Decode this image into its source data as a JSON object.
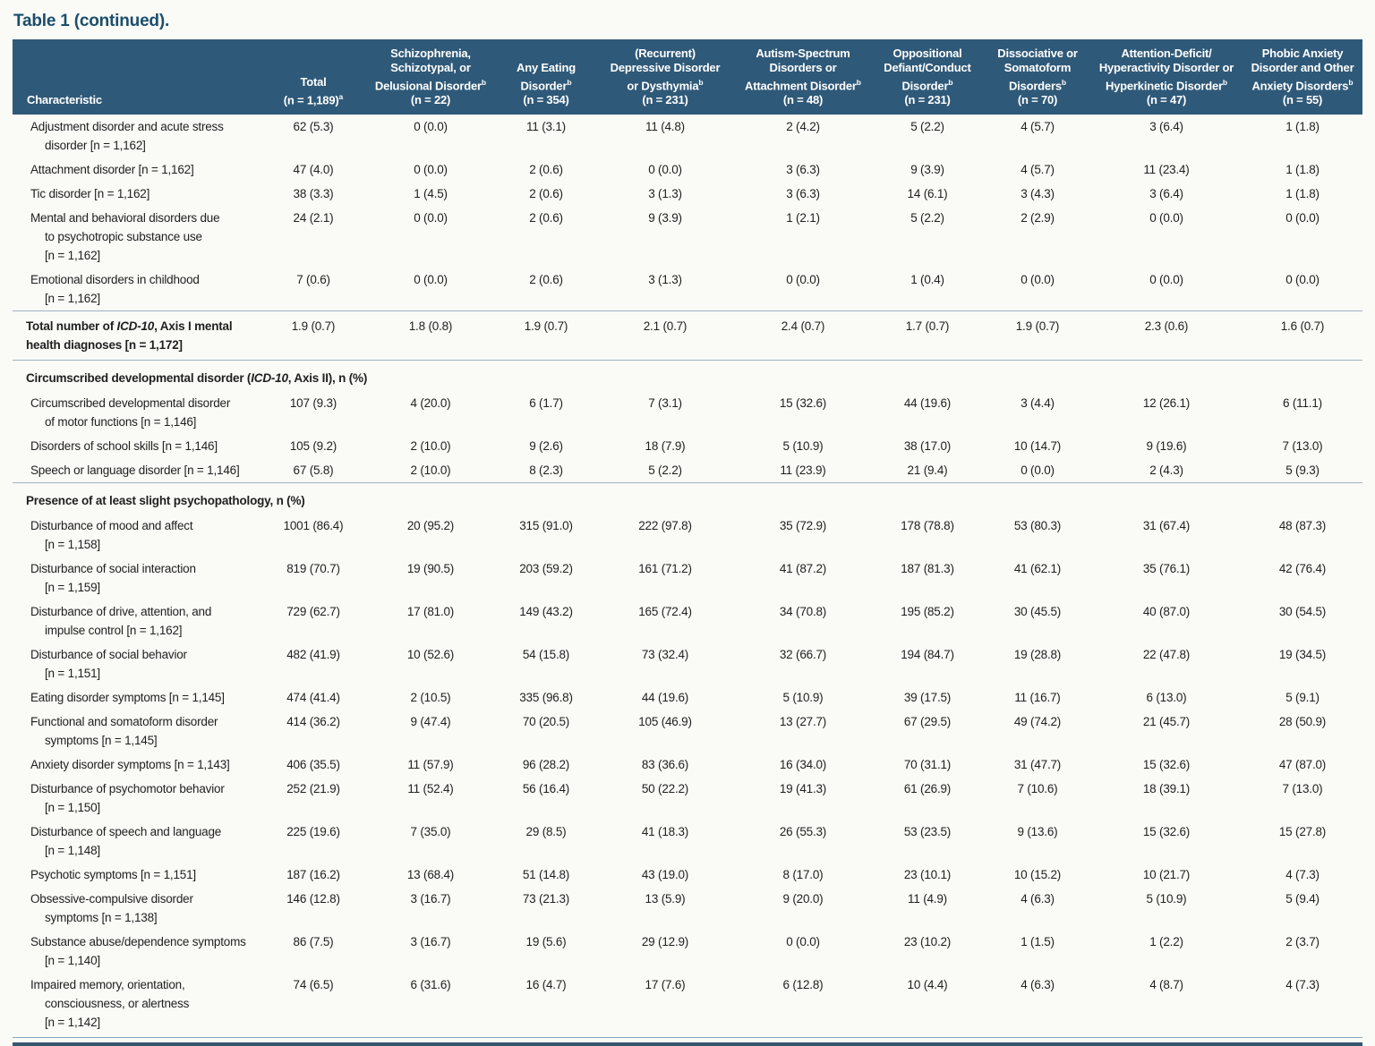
{
  "title": "Table 1 (continued).",
  "colors": {
    "header_bg": "#2f5978",
    "header_text": "#ffffff",
    "title_text": "#1b4e6b",
    "rule": "#9db3c4",
    "bottom_rule": "#35566f"
  },
  "table": {
    "columns": [
      {
        "label_html": "Characteristic"
      },
      {
        "label_html": "Total<br>(n = 1,189)<sup>a</sup>"
      },
      {
        "label_html": "Schizophrenia,<br>Schizotypal, or<br>Delusional Disorder<sup>b</sup><br>(n = 22)"
      },
      {
        "label_html": "Any Eating<br>Disorder<sup>b</sup><br>(n = 354)"
      },
      {
        "label_html": "(Recurrent)<br>Depressive Disorder<br>or Dysthymia<sup>b</sup><br>(n = 231)"
      },
      {
        "label_html": "Autism-Spectrum<br>Disorders or<br>Attachment Disorder<sup>b</sup><br>(n = 48)"
      },
      {
        "label_html": "Oppositional<br>Defiant/Conduct<br>Disorder<sup>b</sup><br>(n = 231)"
      },
      {
        "label_html": "Dissociative or<br>Somatoform<br>Disorders<sup>b</sup><br>(n = 70)"
      },
      {
        "label_html": "Attention-Deficit/<br>Hyperactivity Disorder or<br>Hyperkinetic Disorder<sup>b</sup><br>(n = 47)"
      },
      {
        "label_html": "Phobic Anxiety<br>Disorder and Other<br>Anxiety Disorders<sup>b</sup><br>(n = 55)"
      }
    ],
    "rows": [
      {
        "type": "item",
        "label_html": "Adjustment disorder and acute stress<br>disorder [n = 1,162]",
        "values": [
          "62 (5.3)",
          "0 (0.0)",
          "11 (3.1)",
          "11 (4.8)",
          "2 (4.2)",
          "5 (2.2)",
          "4 (5.7)",
          "3 (6.4)",
          "1 (1.8)"
        ]
      },
      {
        "type": "item",
        "label_html": "Attachment disorder [n = 1,162]",
        "values": [
          "47 (4.0)",
          "0 (0.0)",
          "2 (0.6)",
          "0 (0.0)",
          "3 (6.3)",
          "9 (3.9)",
          "4 (5.7)",
          "11 (23.4)",
          "1 (1.8)"
        ]
      },
      {
        "type": "item",
        "label_html": "Tic disorder [n = 1,162]",
        "values": [
          "38 (3.3)",
          "1 (4.5)",
          "2 (0.6)",
          "3 (1.3)",
          "3 (6.3)",
          "14 (6.1)",
          "3 (4.3)",
          "3 (6.4)",
          "1 (1.8)"
        ]
      },
      {
        "type": "item",
        "label_html": "Mental and behavioral disorders due<br>to psychotropic substance use<br>[n = 1,162]",
        "values": [
          "24 (2.1)",
          "0 (0.0)",
          "2 (0.6)",
          "9 (3.9)",
          "1 (2.1)",
          "5 (2.2)",
          "2 (2.9)",
          "0 (0.0)",
          "0 (0.0)"
        ]
      },
      {
        "type": "item",
        "label_html": "Emotional disorders in childhood<br>[n = 1,162]",
        "values": [
          "7 (0.6)",
          "0 (0.0)",
          "2 (0.6)",
          "3 (1.3)",
          "0 (0.0)",
          "1 (0.4)",
          "0 (0.0)",
          "0 (0.0)",
          "0 (0.0)"
        ]
      },
      {
        "type": "total",
        "label_html": "Total number of <i>ICD-10</i>, Axis I mental<br>health diagnoses [n = 1,172]",
        "values": [
          "1.9 (0.7)",
          "1.8 (0.8)",
          "1.9 (0.7)",
          "2.1 (0.7)",
          "2.4 (0.7)",
          "1.7 (0.7)",
          "1.9 (0.7)",
          "2.3 (0.6)",
          "1.6 (0.7)"
        ]
      },
      {
        "type": "section",
        "label_html": "Circumscribed developmental disorder (<i>ICD-10</i>, Axis II), n (%)"
      },
      {
        "type": "item",
        "label_html": "Circumscribed developmental disorder<br>of motor functions [n = 1,146]",
        "values": [
          "107 (9.3)",
          "4 (20.0)",
          "6 (1.7)",
          "7 (3.1)",
          "15 (32.6)",
          "44 (19.6)",
          "3 (4.4)",
          "12 (26.1)",
          "6 (11.1)"
        ]
      },
      {
        "type": "item",
        "label_html": "Disorders of school skills [n = 1,146]",
        "values": [
          "105 (9.2)",
          "2 (10.0)",
          "9 (2.6)",
          "18 (7.9)",
          "5 (10.9)",
          "38 (17.0)",
          "10 (14.7)",
          "9 (19.6)",
          "7 (13.0)"
        ]
      },
      {
        "type": "item",
        "label_html": "Speech or language disorder [n = 1,146]",
        "values": [
          "67 (5.8)",
          "2 (10.0)",
          "8 (2.3)",
          "5 (2.2)",
          "11 (23.9)",
          "21 (9.4)",
          "0 (0.0)",
          "2 (4.3)",
          "5 (9.3)"
        ]
      },
      {
        "type": "section",
        "rule": true,
        "label_html": "Presence of at least slight psychopathology, n (%)"
      },
      {
        "type": "item",
        "label_html": "Disturbance of mood and affect<br>[n = 1,158]",
        "values": [
          "1001 (86.4)",
          "20 (95.2)",
          "315 (91.0)",
          "222 (97.8)",
          "35 (72.9)",
          "178 (78.8)",
          "53 (80.3)",
          "31 (67.4)",
          "48 (87.3)"
        ]
      },
      {
        "type": "item",
        "label_html": "Disturbance of social interaction<br>[n = 1,159]",
        "values": [
          "819 (70.7)",
          "19 (90.5)",
          "203 (59.2)",
          "161 (71.2)",
          "41 (87.2)",
          "187 (81.3)",
          "41 (62.1)",
          "35 (76.1)",
          "42 (76.4)"
        ]
      },
      {
        "type": "item",
        "label_html": "Disturbance of drive, attention, and<br>impulse control [n = 1,162]",
        "values": [
          "729 (62.7)",
          "17 (81.0)",
          "149 (43.2)",
          "165 (72.4)",
          "34 (70.8)",
          "195 (85.2)",
          "30 (45.5)",
          "40 (87.0)",
          "30 (54.5)"
        ]
      },
      {
        "type": "item",
        "label_html": "Disturbance of social behavior<br>[n = 1,151]",
        "values": [
          "482 (41.9)",
          "10 (52.6)",
          "54 (15.8)",
          "73 (32.4)",
          "32 (66.7)",
          "194 (84.7)",
          "19 (28.8)",
          "22 (47.8)",
          "19 (34.5)"
        ]
      },
      {
        "type": "item",
        "label_html": "Eating disorder symptoms [n = 1,145]",
        "values": [
          "474 (41.4)",
          "2 (10.5)",
          "335 (96.8)",
          "44 (19.6)",
          "5 (10.9)",
          "39 (17.5)",
          "11 (16.7)",
          "6 (13.0)",
          "5 (9.1)"
        ]
      },
      {
        "type": "item",
        "label_html": "Functional and somatoform disorder<br>symptoms [n = 1,145]",
        "values": [
          "414 (36.2)",
          "9 (47.4)",
          "70 (20.5)",
          "105 (46.9)",
          "13 (27.7)",
          "67 (29.5)",
          "49 (74.2)",
          "21 (45.7)",
          "28 (50.9)"
        ]
      },
      {
        "type": "item",
        "label_html": "Anxiety disorder symptoms [n = 1,143]",
        "values": [
          "406 (35.5)",
          "11 (57.9)",
          "96 (28.2)",
          "83 (36.6)",
          "16 (34.0)",
          "70 (31.1)",
          "31 (47.7)",
          "15 (32.6)",
          "47 (87.0)"
        ]
      },
      {
        "type": "item",
        "label_html": "Disturbance of psychomotor behavior<br>[n = 1,150]",
        "values": [
          "252 (21.9)",
          "11 (52.4)",
          "56 (16.4)",
          "50 (22.2)",
          "19 (41.3)",
          "61 (26.9)",
          "7 (10.6)",
          "18 (39.1)",
          "7 (13.0)"
        ]
      },
      {
        "type": "item",
        "label_html": "Disturbance of speech and language<br>[n = 1,148]",
        "values": [
          "225 (19.6)",
          "7 (35.0)",
          "29 (8.5)",
          "41 (18.3)",
          "26 (55.3)",
          "53 (23.5)",
          "9 (13.6)",
          "15 (32.6)",
          "15 (27.8)"
        ]
      },
      {
        "type": "item",
        "label_html": "Psychotic symptoms [n = 1,151]",
        "values": [
          "187 (16.2)",
          "13 (68.4)",
          "51 (14.8)",
          "43 (19.0)",
          "8 (17.0)",
          "23 (10.1)",
          "10 (15.2)",
          "10 (21.7)",
          "4 (7.3)"
        ]
      },
      {
        "type": "item",
        "label_html": "Obsessive-compulsive disorder<br>symptoms [n = 1,138]",
        "values": [
          "146 (12.8)",
          "3 (16.7)",
          "73 (21.3)",
          "13 (5.9)",
          "9 (20.0)",
          "11 (4.9)",
          "4 (6.3)",
          "5 (10.9)",
          "5 (9.4)"
        ]
      },
      {
        "type": "item",
        "label_html": "Substance abuse/dependence symptoms<br>[n = 1,140]",
        "values": [
          "86 (7.5)",
          "3 (16.7)",
          "19 (5.6)",
          "29 (12.9)",
          "0 (0.0)",
          "23 (10.2)",
          "1 (1.5)",
          "1 (2.2)",
          "2 (3.7)"
        ]
      },
      {
        "type": "item",
        "label_html": "Impaired memory, orientation,<br>consciousness, or alertness<br>[n = 1,142]",
        "values": [
          "74 (6.5)",
          "6 (31.6)",
          "16 (4.7)",
          "17 (7.6)",
          "6 (12.8)",
          "10 (4.4)",
          "4 (6.3)",
          "4 (8.7)",
          "4 (7.3)"
        ]
      }
    ]
  }
}
